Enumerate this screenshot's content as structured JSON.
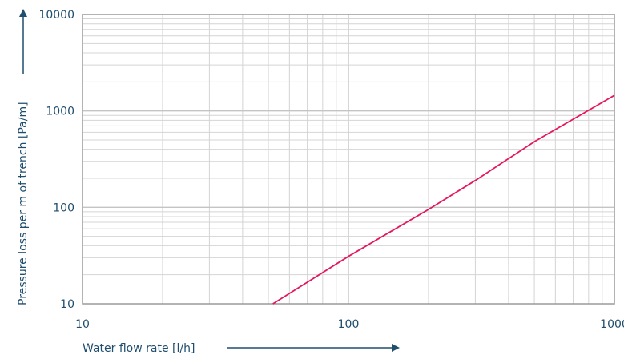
{
  "chart_data": {
    "type": "line",
    "title": "",
    "xlabel": "Water flow rate [l/h]",
    "ylabel": "Pressure loss per m of trench [Pa/m]",
    "x_scale": "log",
    "y_scale": "log",
    "xlim": [
      10,
      1000
    ],
    "ylim": [
      10,
      10000
    ],
    "x_ticks": [
      "10",
      "100",
      "1000"
    ],
    "y_ticks": [
      "10",
      "100",
      "1000",
      "10000"
    ],
    "grid": true,
    "legend": "none",
    "series": [
      {
        "color": "#e5195a",
        "x": [
          52,
          100,
          200,
          300,
          500,
          1000
        ],
        "y": [
          10,
          31,
          95,
          190,
          480,
          1450
        ]
      }
    ],
    "colors": {
      "axis": "#1f4e6e",
      "grid": "#d4d4d4",
      "frame": "#9a9a9a",
      "line": "#e5195a"
    }
  }
}
